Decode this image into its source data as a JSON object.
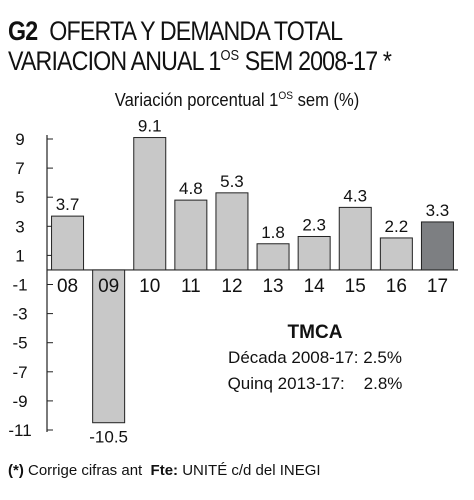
{
  "title": {
    "code": "G2",
    "line1": "OFERTA Y DEMANDA TOTAL",
    "line2_pre": "VARIACION ANUAL 1",
    "line2_sup": "OS",
    "line2_post": " SEM 2008-17 *"
  },
  "subtitle": {
    "pre": "Variación porcentual 1",
    "sup": "OS",
    "post": " sem (%)"
  },
  "chart_data": {
    "type": "bar",
    "categories": [
      "08",
      "09",
      "10",
      "11",
      "12",
      "13",
      "14",
      "15",
      "16",
      "17"
    ],
    "values": [
      3.7,
      -10.5,
      9.1,
      4.8,
      5.3,
      1.8,
      2.3,
      4.3,
      2.2,
      3.3
    ],
    "value_labels": [
      "3.7",
      "-10.5",
      "9.1",
      "4.8",
      "5.3",
      "1.8",
      "2.3",
      "4.3",
      "2.2",
      "3.3"
    ],
    "ylim": [
      -11,
      9
    ],
    "yticks": [
      9,
      7,
      5,
      3,
      1,
      -1,
      -3,
      -5,
      -7,
      -9,
      -11
    ],
    "ytick_labels": [
      "9",
      "7",
      "5",
      "3",
      "1",
      "-1",
      "-3",
      "-5",
      "-7",
      "-9",
      "-11"
    ],
    "grid": false,
    "colors": {
      "bar": "#c8c8c8",
      "highlight": "#7d7f82",
      "stroke": "#222222"
    },
    "highlight_index": 9
  },
  "tmca": {
    "title": "TMCA",
    "line1": "Década 2008-17: 2.5%",
    "line2": "Quinq 2013-17:    2.8%"
  },
  "footer": {
    "note_mark": "(*)",
    "note_text": " Corrige cifras ant  ",
    "source_label": "Fte:",
    "source_text": " UNITÉ c/d del INEGI"
  }
}
